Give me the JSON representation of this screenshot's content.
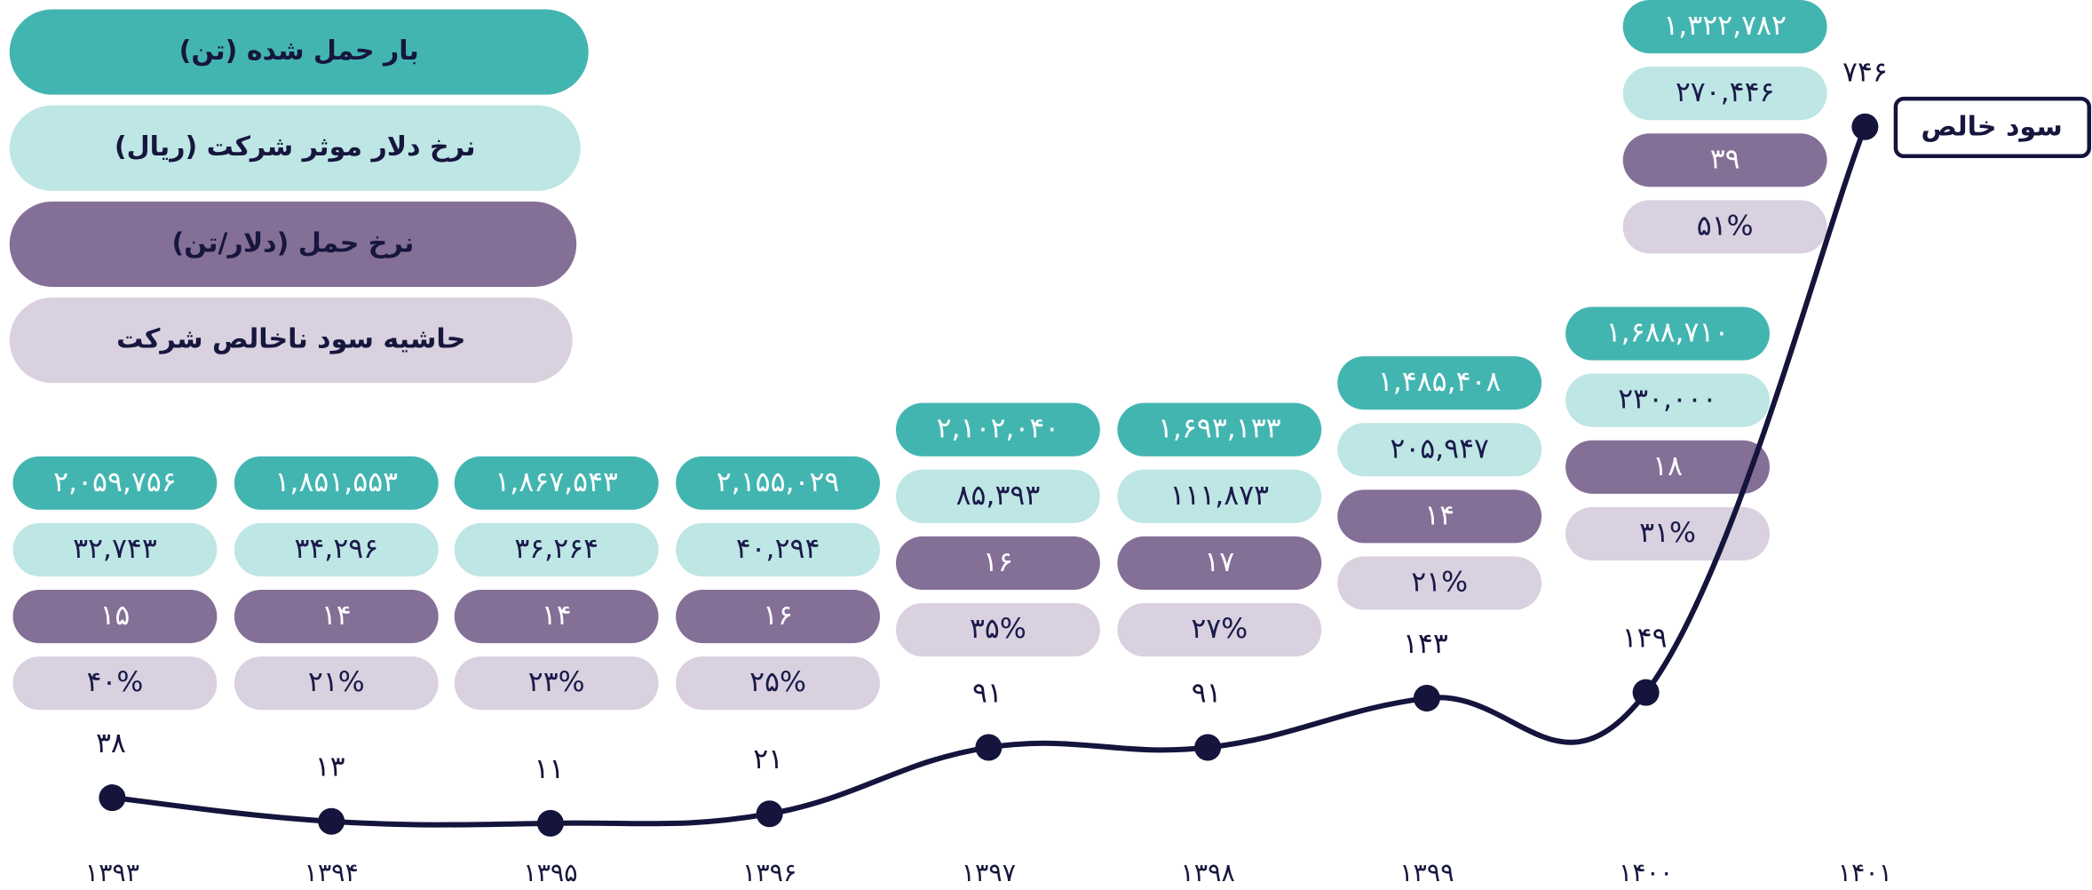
{
  "chart_data": {
    "type": "line",
    "categories": [
      "۱۳۹۳",
      "۱۳۹۴",
      "۱۳۹۵",
      "۱۳۹۶",
      "۱۳۹۷",
      "۱۳۹۸",
      "۱۳۹۹",
      "۱۴۰۰",
      "۱۴۰۱"
    ],
    "series": [
      {
        "name": "سود خالص",
        "color": "#14143c",
        "values": [
          38,
          13,
          11,
          21,
          91,
          91,
          143,
          149,
          746
        ],
        "value_labels": [
          "۳۸",
          "۱۳",
          "۱۱",
          "۲۱",
          "۹۱",
          "۹۱",
          "۱۴۳",
          "۱۴۹",
          "۷۴۶"
        ]
      },
      {
        "name": "بار حمل شده (تن)",
        "color": "#43b5b1",
        "label_color": "#ffffff",
        "values": [
          2059756,
          1851553,
          1867543,
          2155029,
          2102040,
          1693133,
          1485408,
          1688710,
          1322782
        ],
        "value_labels": [
          "۲,۰۵۹,۷۵۶",
          "۱,۸۵۱,۵۵۳",
          "۱,۸۶۷,۵۴۳",
          "۲,۱۵۵,۰۲۹",
          "۲,۱۰۲,۰۴۰",
          "۱,۶۹۳,۱۳۳",
          "۱,۴۸۵,۴۰۸",
          "۱,۶۸۸,۷۱۰",
          "۱,۳۲۲,۷۸۲"
        ]
      },
      {
        "name": "نرخ دلار موثر شرکت (ریال)",
        "color": "#bde6e4",
        "label_color": "#1a1a4a",
        "values": [
          32743,
          34296,
          36264,
          40294,
          85393,
          111873,
          205947,
          230000,
          270446
        ],
        "value_labels": [
          "۳۲,۷۴۳",
          "۳۴,۲۹۶",
          "۳۶,۲۶۴",
          "۴۰,۲۹۴",
          "۸۵,۳۹۳",
          "۱۱۱,۸۷۳",
          "۲۰۵,۹۴۷",
          "۲۳۰,۰۰۰",
          "۲۷۰,۴۴۶"
        ]
      },
      {
        "name": "نرخ حمل (دلار/تن)",
        "color": "#846f97",
        "label_color": "#ffffff",
        "values": [
          15,
          14,
          14,
          16,
          16,
          17,
          14,
          18,
          39
        ],
        "value_labels": [
          "۱۵",
          "۱۴",
          "۱۴",
          "۱۶",
          "۱۶",
          "۱۷",
          "۱۴",
          "۱۸",
          "۳۹"
        ]
      },
      {
        "name": "حاشیه سود ناخالص شرکت",
        "color": "#d9d1df",
        "label_color": "#1a1a4a",
        "values": [
          40,
          21,
          23,
          25,
          35,
          27,
          21,
          31,
          51
        ],
        "value_labels": [
          "۴۰%",
          "۲۱%",
          "۲۳%",
          "۲۵%",
          "۳۵%",
          "۲۷%",
          "۲۱%",
          "۳۱%",
          "۵۱%"
        ]
      }
    ]
  }
}
